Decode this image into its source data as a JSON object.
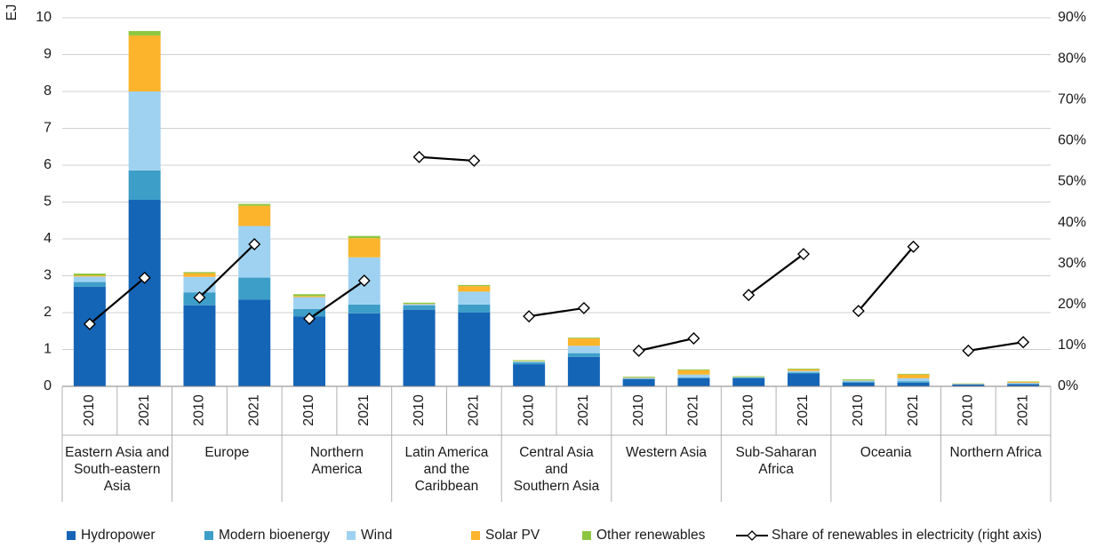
{
  "chart_data": {
    "type": "stacked_bar_line",
    "ylabel": "EJ",
    "groups": [
      "Eastern Asia and\nSouth-eastern\nAsia",
      "Europe",
      "Northern\nAmerica",
      "Latin America\nand the\nCaribbean",
      "Central Asia\nand\nSouthern Asia",
      "Western Asia",
      "Sub-Saharan\nAfrica",
      "Oceania",
      "Northern Africa"
    ],
    "categories": [
      "2010",
      "2021",
      "2010",
      "2021",
      "2010",
      "2021",
      "2010",
      "2021",
      "2010",
      "2021",
      "2010",
      "2021",
      "2010",
      "2021",
      "2010",
      "2021",
      "2010",
      "2021"
    ],
    "series": [
      {
        "name": "Hydropower",
        "color": "#1565b7",
        "values": [
          2.7,
          5.06,
          2.2,
          2.35,
          1.9,
          1.98,
          2.08,
          2.0,
          0.6,
          0.8,
          0.2,
          0.22,
          0.22,
          0.35,
          0.1,
          0.1,
          0.05,
          0.06
        ]
      },
      {
        "name": "Modern bioenergy",
        "color": "#3d9ec8",
        "values": [
          0.13,
          0.8,
          0.35,
          0.6,
          0.2,
          0.24,
          0.12,
          0.22,
          0.05,
          0.1,
          0.01,
          0.02,
          0.02,
          0.03,
          0.03,
          0.04,
          0.005,
          0.005
        ]
      },
      {
        "name": "Wind",
        "color": "#9fd2f1",
        "values": [
          0.15,
          2.14,
          0.42,
          1.4,
          0.32,
          1.28,
          0.03,
          0.35,
          0.03,
          0.2,
          0.02,
          0.08,
          0.01,
          0.04,
          0.03,
          0.08,
          0.01,
          0.03
        ]
      },
      {
        "name": "Solar PV",
        "color": "#fbb42c",
        "values": [
          0.03,
          1.52,
          0.1,
          0.55,
          0.03,
          0.52,
          0.01,
          0.15,
          0.01,
          0.2,
          0.01,
          0.12,
          0.005,
          0.04,
          0.01,
          0.1,
          0.005,
          0.03
        ]
      },
      {
        "name": "Other renewables",
        "color": "#8cc63f",
        "values": [
          0.05,
          0.12,
          0.03,
          0.05,
          0.05,
          0.06,
          0.03,
          0.03,
          0.02,
          0.02,
          0.02,
          0.02,
          0.02,
          0.02,
          0.02,
          0.02,
          0.01,
          0.01
        ]
      },
      {
        "name": "Share of renewables in electricity (right axis)",
        "color": "#000000",
        "axis": "y2",
        "values": [
          15.2,
          26.5,
          21.7,
          34.7,
          16.5,
          25.8,
          56,
          55.1,
          17.1,
          19.1,
          8.7,
          11.7,
          22.3,
          32.3,
          18.4,
          34.1,
          8.7,
          10.8
        ]
      }
    ],
    "ylim": [
      0,
      10
    ],
    "yticks": [
      0,
      1,
      2,
      3,
      4,
      5,
      6,
      7,
      8,
      9,
      10
    ],
    "y2lim": [
      0,
      90
    ],
    "y2ticks": [
      {
        "value": 0,
        "label": "0%"
      },
      {
        "value": 10,
        "label": "10%"
      },
      {
        "value": 20,
        "label": "20%"
      },
      {
        "value": 30,
        "label": "30%"
      },
      {
        "value": 40,
        "label": "40%"
      },
      {
        "value": 50,
        "label": "50%"
      },
      {
        "value": 60,
        "label": "60%"
      },
      {
        "value": 70,
        "label": "70%"
      },
      {
        "value": 80,
        "label": "80%"
      },
      {
        "value": 90,
        "label": "90%"
      }
    ],
    "grid": true
  }
}
